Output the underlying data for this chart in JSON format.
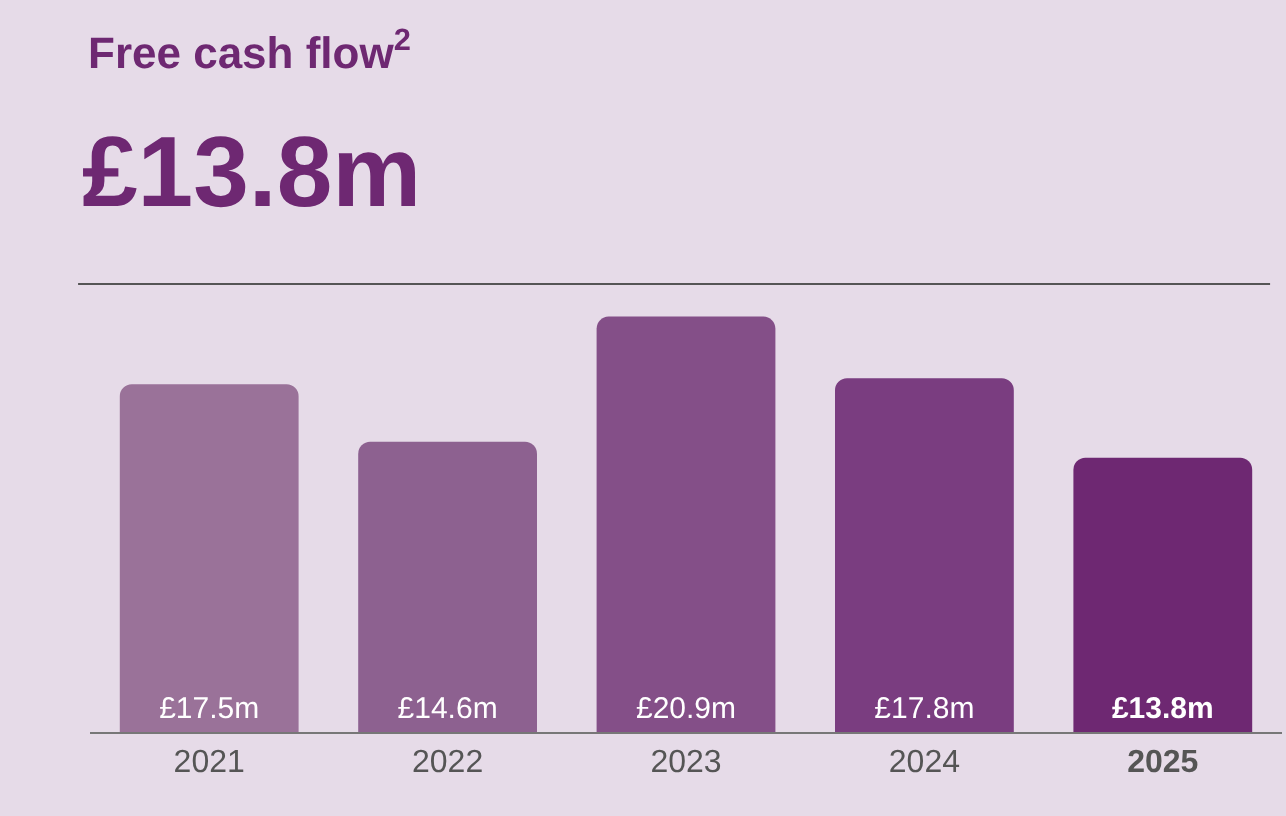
{
  "chart_data": {
    "type": "bar",
    "title": "Free cash flow$^{2}$",
    "subtitle": "£13.8m",
    "categories": [
      "2021",
      "2022",
      "2023",
      "2024",
      "2025"
    ],
    "values": [
      17.5,
      14.6,
      20.9,
      17.8,
      13.8
    ],
    "colors": [
      "#9a7299",
      "#8d6190",
      "#844f88",
      "#7a3d80",
      "#6e2872"
    ],
    "value_labels": [
      "£17.5m",
      "£14.6m",
      "£20.9m",
      "£17.8m",
      "£13.8m"
    ],
    "grid": false,
    "legend": false
  }
}
